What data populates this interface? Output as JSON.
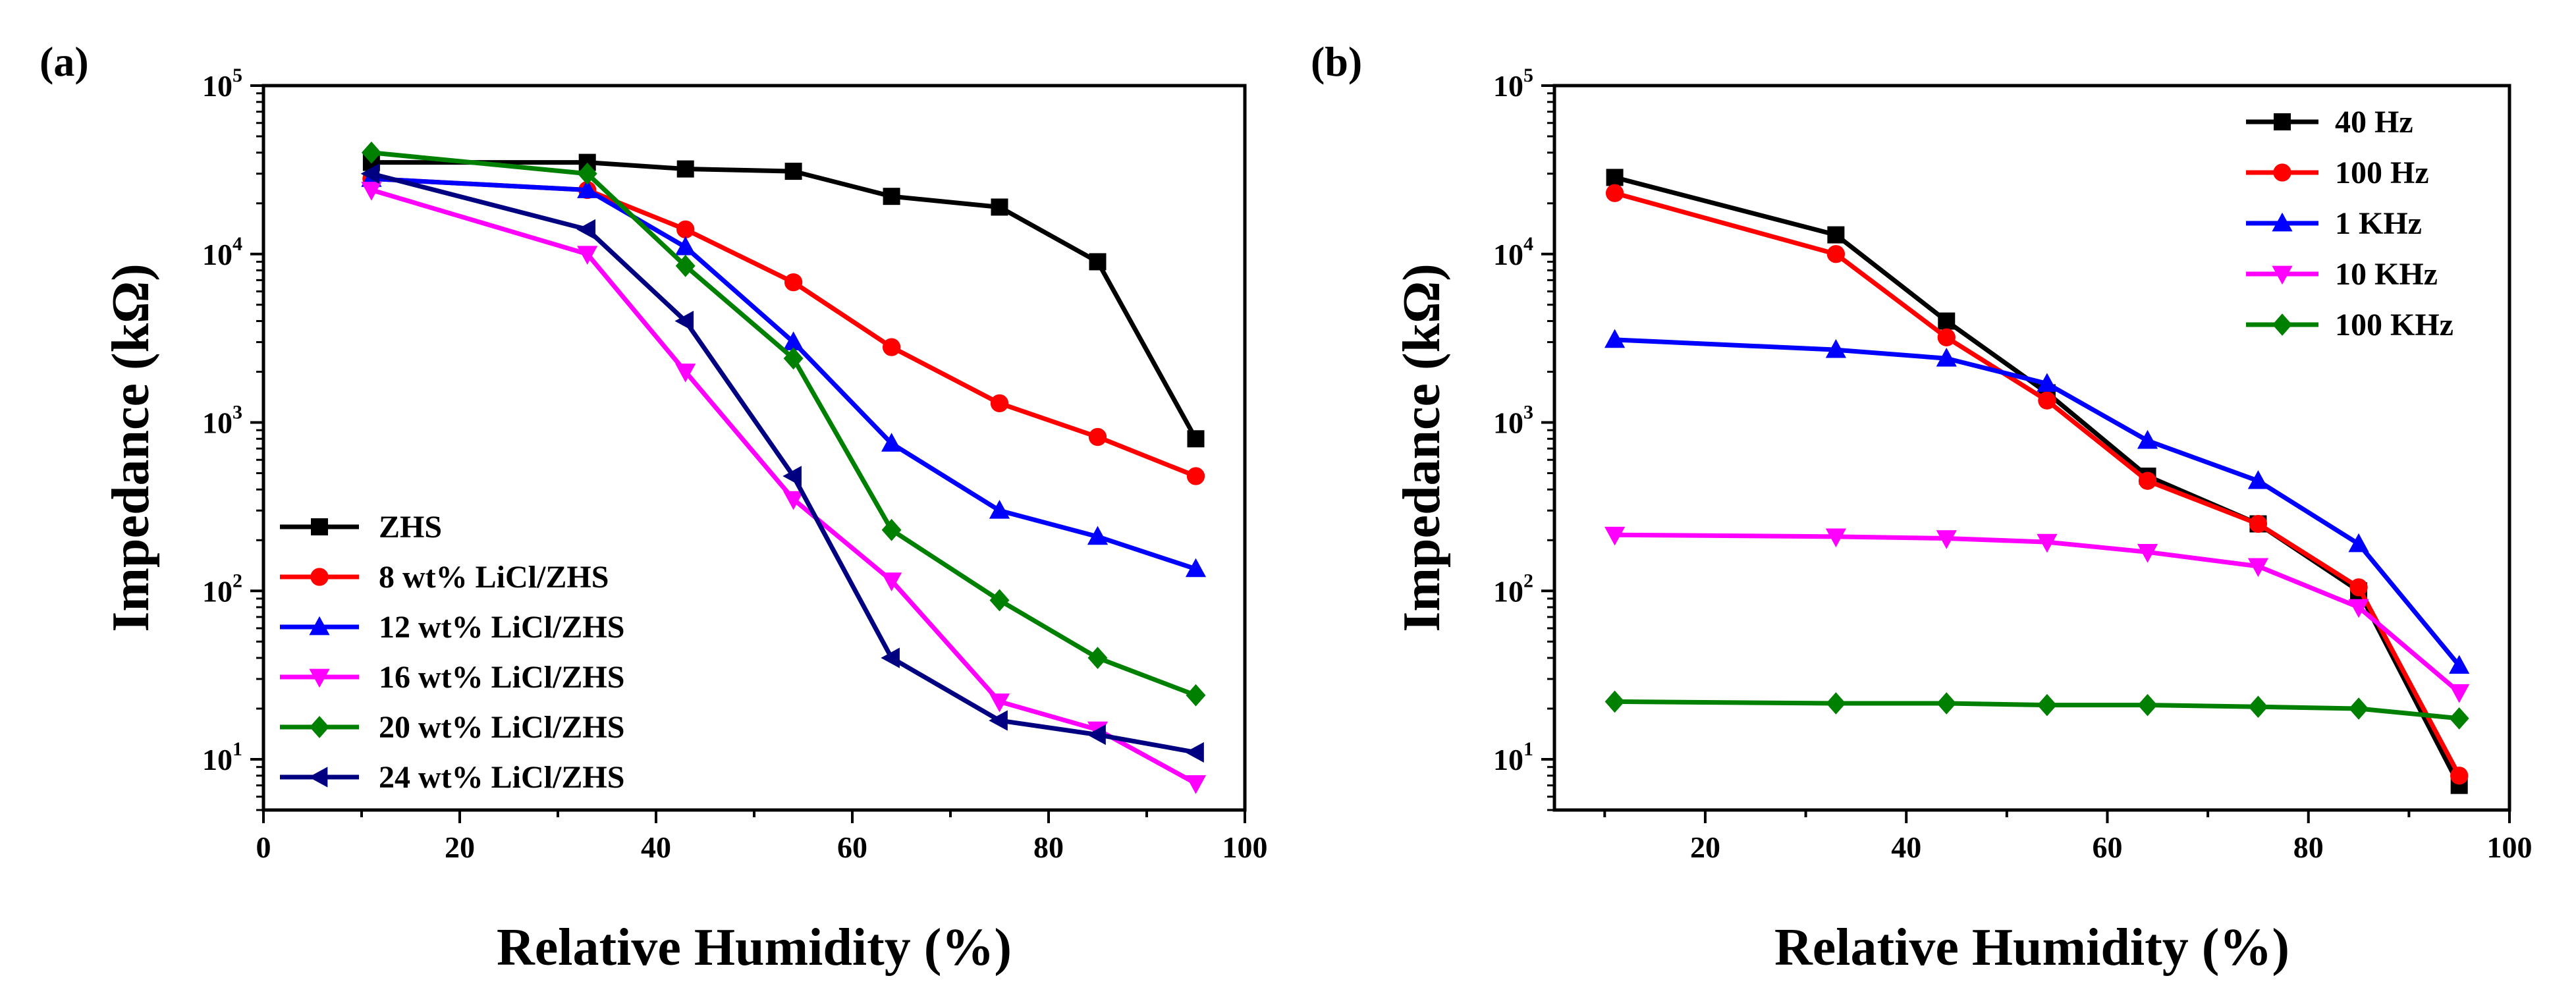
{
  "chart_data": [
    {
      "panel": "(a)",
      "type": "line",
      "xlabel": "Relative Humidity (%)",
      "ylabel": "Impedance (kΩ)",
      "xlim": [
        0,
        100
      ],
      "ylim": [
        5,
        100000
      ],
      "yscale": "log",
      "xticks": [
        "0",
        "20",
        "40",
        "60",
        "80",
        "100"
      ],
      "legend_position": "bottom-left",
      "x": [
        11,
        33,
        43,
        54,
        64,
        75,
        85,
        95
      ],
      "series": [
        {
          "name": "ZHS",
          "color": "#000000",
          "marker": "square",
          "values": [
            35000,
            35000,
            32000,
            31000,
            22000,
            19000,
            9000,
            800
          ]
        },
        {
          "name": "8 wt% LiCl/ZHS",
          "color": "#ff0000",
          "marker": "circle",
          "values": [
            28000,
            24000,
            14000,
            6800,
            2800,
            1300,
            820,
            480
          ]
        },
        {
          "name": "12 wt% LiCl/ZHS",
          "color": "#0000ff",
          "marker": "triangle-up",
          "values": [
            28000,
            24000,
            11000,
            3000,
            750,
            300,
            210,
            135
          ]
        },
        {
          "name": "16 wt% LiCl/ZHS",
          "color": "#ff00ff",
          "marker": "triangle-down",
          "values": [
            24000,
            10000,
            2000,
            350,
            115,
            22,
            15,
            7.2
          ]
        },
        {
          "name": "20 wt% LiCl/ZHS",
          "color": "#008000",
          "marker": "diamond",
          "values": [
            40000,
            30000,
            8500,
            2400,
            230,
            88,
            40,
            24
          ]
        },
        {
          "name": "24 wt% LiCl/ZHS",
          "color": "#000080",
          "marker": "triangle-left",
          "values": [
            30000,
            14000,
            4000,
            480,
            40,
            17,
            14,
            11
          ]
        }
      ]
    },
    {
      "panel": "(b)",
      "type": "line",
      "xlabel": "Relative Humidity (%)",
      "ylabel": "Impedance (kΩ)",
      "xlim": [
        5,
        100
      ],
      "ylim": [
        5,
        100000
      ],
      "yscale": "log",
      "xticks": [
        "20",
        "40",
        "60",
        "80",
        "100"
      ],
      "legend_position": "top-right",
      "x": [
        11,
        33,
        44,
        54,
        64,
        75,
        85,
        95
      ],
      "series": [
        {
          "name": "40 Hz",
          "color": "#000000",
          "marker": "square",
          "values": [
            28500,
            13000,
            4000,
            1500,
            480,
            250,
            100,
            7
          ]
        },
        {
          "name": "100 Hz",
          "color": "#ff0000",
          "marker": "circle",
          "values": [
            23000,
            10000,
            3200,
            1350,
            450,
            250,
            105,
            8
          ]
        },
        {
          "name": "1 KHz",
          "color": "#0000ff",
          "marker": "triangle-up",
          "values": [
            3100,
            2700,
            2400,
            1700,
            780,
            450,
            190,
            36
          ]
        },
        {
          "name": "10 KHz",
          "color": "#ff00ff",
          "marker": "triangle-down",
          "values": [
            215,
            210,
            205,
            195,
            170,
            140,
            80,
            25
          ]
        },
        {
          "name": "100 KHz",
          "color": "#008000",
          "marker": "diamond",
          "values": [
            22,
            21.5,
            21.5,
            21,
            21,
            20.5,
            20,
            17.5
          ]
        }
      ]
    }
  ],
  "y_tick_labels": [
    {
      "base": "10",
      "exp": "1"
    },
    {
      "base": "10",
      "exp": "2"
    },
    {
      "base": "10",
      "exp": "3"
    },
    {
      "base": "10",
      "exp": "4"
    },
    {
      "base": "10",
      "exp": "5"
    }
  ]
}
